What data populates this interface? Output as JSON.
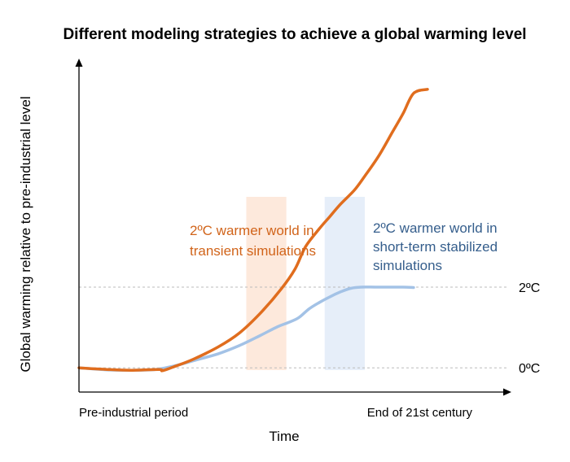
{
  "colors": {
    "transient": "#e06d1e",
    "stabilized": "#a3c2e6",
    "transient_band": "#fde9dc",
    "stabilized_band": "#e6eef9",
    "transient_text": "#d1641a",
    "stabilized_text": "#355e8c",
    "gridline": "#bbbbbb",
    "axis": "#000000"
  },
  "chart_data": {
    "type": "line",
    "title": "Different modeling strategies to achieve a global warming level",
    "xlabel": "Time",
    "ylabel": "Global warming relative to pre-industrial level",
    "x_tick_labels": [
      "Pre-industrial period",
      "End of 21st century"
    ],
    "y_reference_lines": [
      {
        "value": 0,
        "label": "0ºC"
      },
      {
        "value": 2,
        "label": "2ºC"
      }
    ],
    "xlim": [
      0,
      100
    ],
    "ylim": [
      -0.6,
      7.5
    ],
    "series": [
      {
        "name": "transient",
        "x": [
          0,
          8,
          15,
          23,
          24,
          28,
          33,
          40,
          46,
          52,
          58,
          62,
          65,
          69,
          72,
          75,
          79,
          82,
          86,
          90,
          93,
          96,
          100
        ],
        "y": [
          0.0,
          -0.04,
          -0.06,
          -0.04,
          -0.07,
          0.05,
          0.22,
          0.52,
          0.86,
          1.35,
          1.95,
          2.45,
          3.0,
          3.45,
          3.75,
          4.05,
          4.4,
          4.75,
          5.25,
          5.85,
          6.3,
          6.8,
          6.9
        ]
      },
      {
        "name": "stabilized",
        "x": [
          0,
          8,
          15,
          22,
          28,
          33,
          40,
          46,
          52,
          57,
          60,
          63,
          66,
          69,
          72,
          75,
          78,
          81,
          85,
          89,
          93,
          96
        ],
        "y": [
          0.0,
          -0.05,
          -0.06,
          -0.04,
          0.06,
          0.18,
          0.35,
          0.55,
          0.8,
          1.02,
          1.12,
          1.24,
          1.46,
          1.62,
          1.76,
          1.88,
          1.97,
          2.0,
          2.0,
          2.0,
          2.0,
          1.99
        ]
      }
    ],
    "bands": [
      {
        "name": "transient",
        "x_start": 48,
        "x_end": 59.5
      },
      {
        "name": "stabilized",
        "x_start": 70.5,
        "x_end": 82
      }
    ],
    "annotations": {
      "transient": [
        "2ºC warmer world in",
        "transient simulations"
      ],
      "stabilized": [
        "2ºC warmer world in",
        "short-term stabilized",
        "simulations"
      ]
    }
  }
}
